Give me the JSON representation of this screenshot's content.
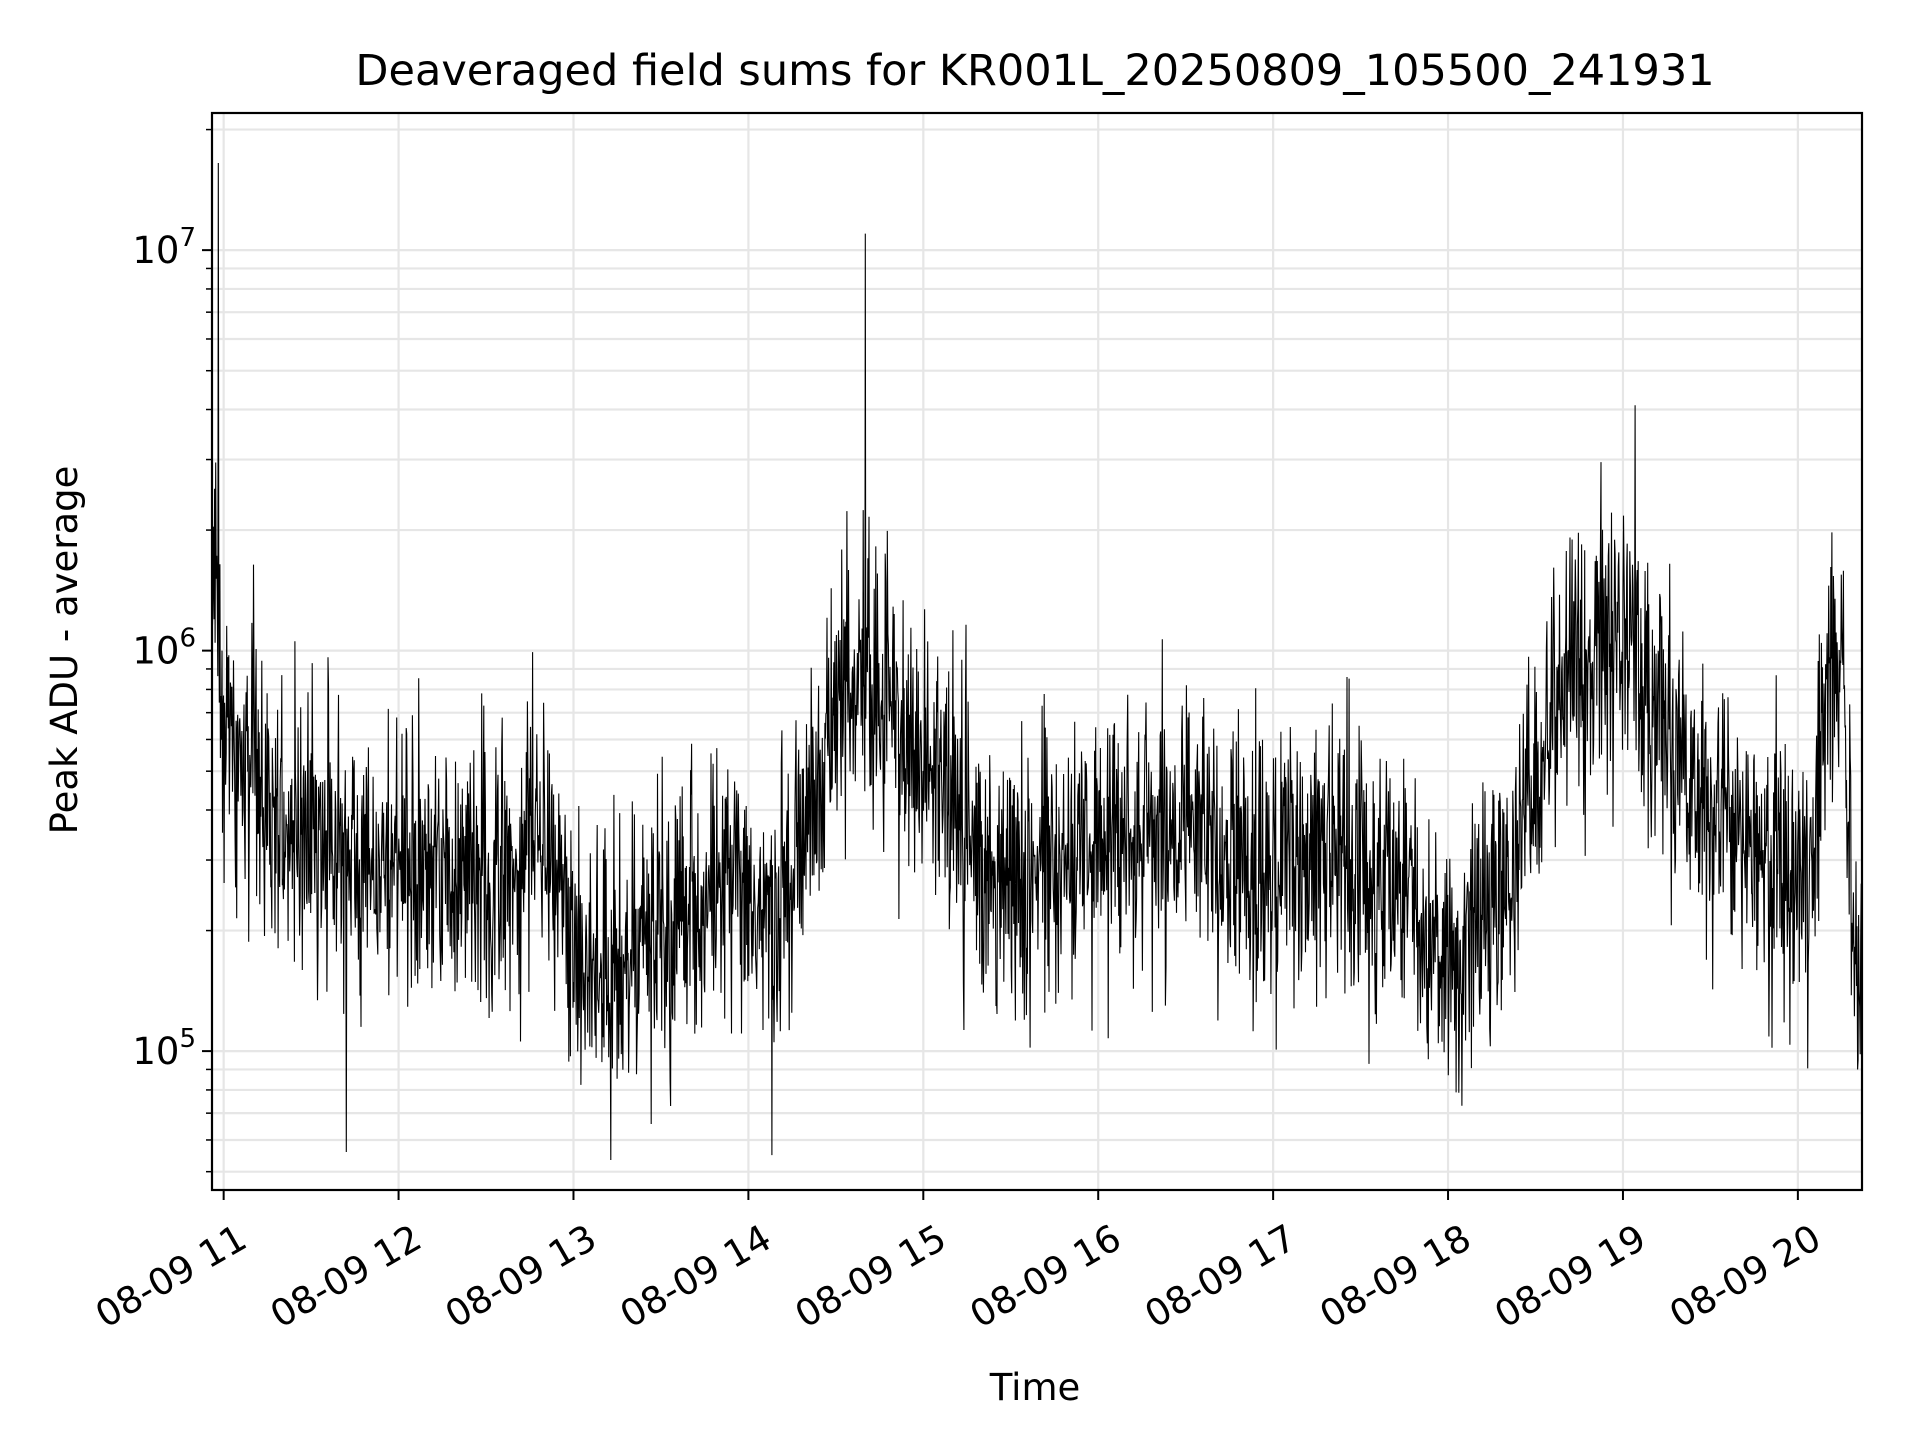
{
  "chart_data": {
    "type": "line",
    "title": "Deaveraged field sums for KR001L_20250809_105500_241931",
    "xlabel": "Time",
    "ylabel": "Peak ADU - average",
    "yscale": "log",
    "ylim": [
      45000,
      22000000
    ],
    "xlim": [
      "2025-08-09 10:56",
      "2025-08-09 20:22"
    ],
    "grid": true,
    "line_color": "#000000",
    "grid_color": "#e6e6e6",
    "x_ticks": [
      {
        "value": "2025-08-09 11:00",
        "label": "08-09 11"
      },
      {
        "value": "2025-08-09 12:00",
        "label": "08-09 12"
      },
      {
        "value": "2025-08-09 13:00",
        "label": "08-09 13"
      },
      {
        "value": "2025-08-09 14:00",
        "label": "08-09 14"
      },
      {
        "value": "2025-08-09 15:00",
        "label": "08-09 15"
      },
      {
        "value": "2025-08-09 16:00",
        "label": "08-09 16"
      },
      {
        "value": "2025-08-09 17:00",
        "label": "08-09 17"
      },
      {
        "value": "2025-08-09 18:00",
        "label": "08-09 18"
      },
      {
        "value": "2025-08-09 19:00",
        "label": "08-09 19"
      },
      {
        "value": "2025-08-09 20:00",
        "label": "08-09 20"
      }
    ],
    "y_ticks": [
      {
        "value": 100000,
        "base": "10",
        "exp": "5"
      },
      {
        "value": 1000000,
        "base": "10",
        "exp": "6"
      },
      {
        "value": 10000000,
        "base": "10",
        "exp": "7"
      }
    ],
    "series": [
      {
        "x": [
          "2025-08-09 10:56",
          "2025-08-09 10:58",
          "2025-08-09 11:00",
          "2025-08-09 11:10",
          "2025-08-09 11:20",
          "2025-08-09 11:30",
          "2025-08-09 11:40",
          "2025-08-09 11:50",
          "2025-08-09 12:00",
          "2025-08-09 12:10",
          "2025-08-09 12:20",
          "2025-08-09 12:30",
          "2025-08-09 12:40",
          "2025-08-09 12:50",
          "2025-08-09 13:00",
          "2025-08-09 13:10",
          "2025-08-09 13:20",
          "2025-08-09 13:30",
          "2025-08-09 13:40",
          "2025-08-09 13:50",
          "2025-08-09 14:00",
          "2025-08-09 14:10",
          "2025-08-09 14:20",
          "2025-08-09 14:30",
          "2025-08-09 14:40",
          "2025-08-09 14:50",
          "2025-08-09 15:00",
          "2025-08-09 15:10",
          "2025-08-09 15:20",
          "2025-08-09 15:30",
          "2025-08-09 15:40",
          "2025-08-09 15:50",
          "2025-08-09 16:00",
          "2025-08-09 16:10",
          "2025-08-09 16:20",
          "2025-08-09 16:30",
          "2025-08-09 16:40",
          "2025-08-09 16:50",
          "2025-08-09 17:00",
          "2025-08-09 17:10",
          "2025-08-09 17:20",
          "2025-08-09 17:30",
          "2025-08-09 17:40",
          "2025-08-09 17:50",
          "2025-08-09 18:00",
          "2025-08-09 18:10",
          "2025-08-09 18:20",
          "2025-08-09 18:30",
          "2025-08-09 18:40",
          "2025-08-09 18:50",
          "2025-08-09 19:00",
          "2025-08-09 19:10",
          "2025-08-09 19:20",
          "2025-08-09 19:30",
          "2025-08-09 19:40",
          "2025-08-09 19:50",
          "2025-08-09 20:00",
          "2025-08-09 20:05",
          "2025-08-09 20:10",
          "2025-08-09 20:15",
          "2025-08-09 20:20",
          "2025-08-09 20:22"
        ],
        "y": [
          1400000,
          1200000,
          700000,
          450000,
          380000,
          350000,
          320000,
          300000,
          290000,
          280000,
          270000,
          260000,
          300000,
          400000,
          200000,
          150000,
          170000,
          200000,
          220000,
          250000,
          220000,
          200000,
          350000,
          700000,
          900000,
          700000,
          550000,
          420000,
          300000,
          260000,
          280000,
          300000,
          330000,
          350000,
          360000,
          340000,
          320000,
          300000,
          290000,
          300000,
          310000,
          280000,
          250000,
          220000,
          180000,
          200000,
          280000,
          400000,
          900000,
          1200000,
          1100000,
          700000,
          500000,
          400000,
          350000,
          300000,
          280000,
          300000,
          900000,
          1100000,
          150000,
          130000
        ],
        "spikes": [
          {
            "x": "2025-08-09 10:58",
            "y": 16500000
          },
          {
            "x": "2025-08-09 14:40",
            "y": 11000000
          },
          {
            "x": "2025-08-09 19:04",
            "y": 4100000
          },
          {
            "x": "2025-08-09 11:42",
            "y": 56000
          },
          {
            "x": "2025-08-09 14:08",
            "y": 55000
          }
        ]
      }
    ]
  }
}
